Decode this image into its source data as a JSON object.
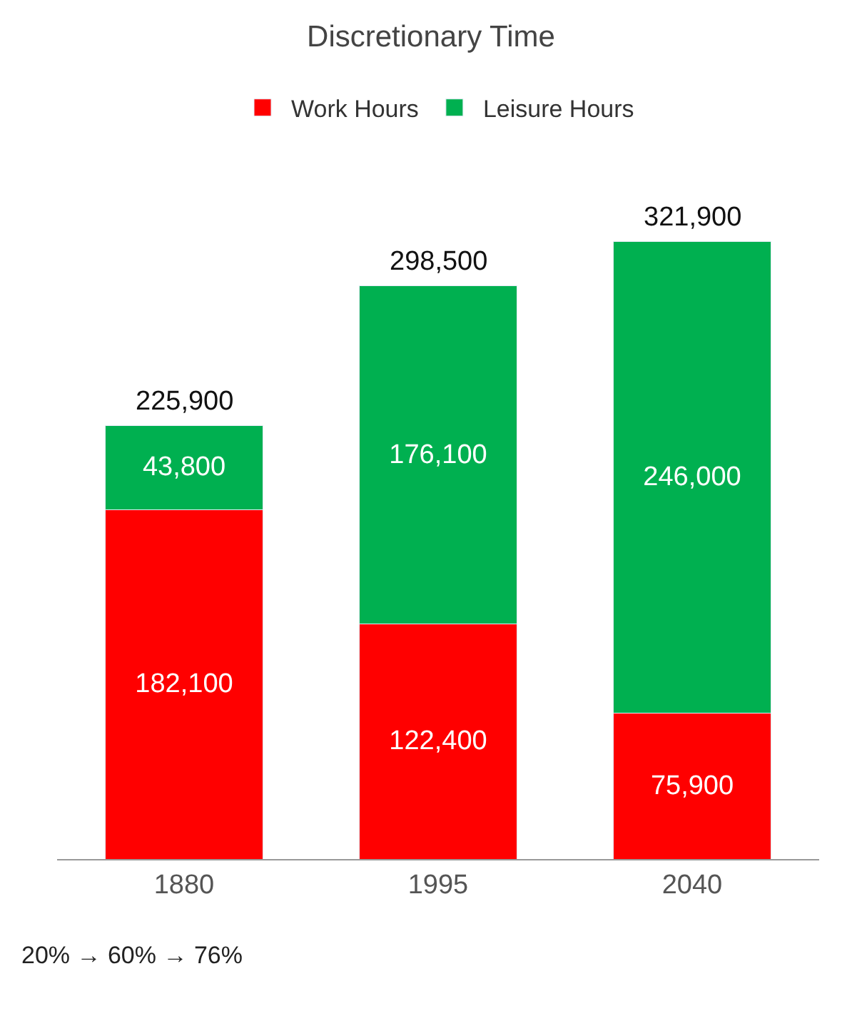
{
  "chart_data": {
    "type": "bar",
    "title": "Discretionary Time",
    "categories": [
      "1880",
      "1995",
      "2040"
    ],
    "stacked": true,
    "legend": "top",
    "series": [
      {
        "name": "Work Hours",
        "color": "#ff0000",
        "values": [
          182100,
          122400,
          75900
        ],
        "value_labels": [
          "182,100",
          "122,400",
          "75,900"
        ]
      },
      {
        "name": "Leisure Hours",
        "color": "#00b050",
        "values": [
          43800,
          176100,
          246000
        ],
        "value_labels": [
          "43,800",
          "176,100",
          "246,000"
        ]
      }
    ],
    "totals": [
      "225,900",
      "298,500",
      "321,900"
    ],
    "annotations": [
      "20% → 60% → 76%"
    ]
  }
}
